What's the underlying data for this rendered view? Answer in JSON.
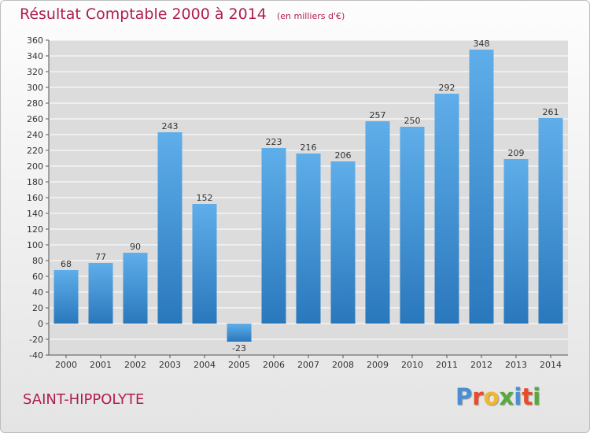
{
  "title": "Résultat Comptable 2000 à 2014",
  "subtitle": "(en milliers d'€)",
  "place": "SAINT-HIPPOLYTE",
  "logo": {
    "letters": [
      "P",
      "r",
      "o",
      "x",
      "i",
      "t",
      "i"
    ],
    "colors": [
      "#4a8fd6",
      "#e94b2a",
      "#f0b72f",
      "#56aa3c",
      "#4a8fd6",
      "#e94b2a",
      "#56aa3c"
    ]
  },
  "colors": {
    "title": "#b01e4d",
    "bar_light": "#5faeea",
    "bar_dark": "#2a78bc",
    "grid": "#ffffff"
  },
  "chart_data": {
    "type": "bar",
    "categories": [
      "2000",
      "2001",
      "2002",
      "2003",
      "2004",
      "2005",
      "2006",
      "2007",
      "2008",
      "2009",
      "2010",
      "2011",
      "2012",
      "2013",
      "2014"
    ],
    "values": [
      68,
      77,
      90,
      243,
      152,
      -23,
      223,
      216,
      206,
      257,
      250,
      292,
      348,
      209,
      261
    ],
    "ylim": [
      -40,
      360
    ],
    "yticks": [
      -40,
      -20,
      0,
      20,
      40,
      60,
      80,
      100,
      120,
      140,
      160,
      180,
      200,
      220,
      240,
      260,
      280,
      300,
      320,
      340,
      360
    ],
    "grid": true,
    "data_labels": true
  }
}
